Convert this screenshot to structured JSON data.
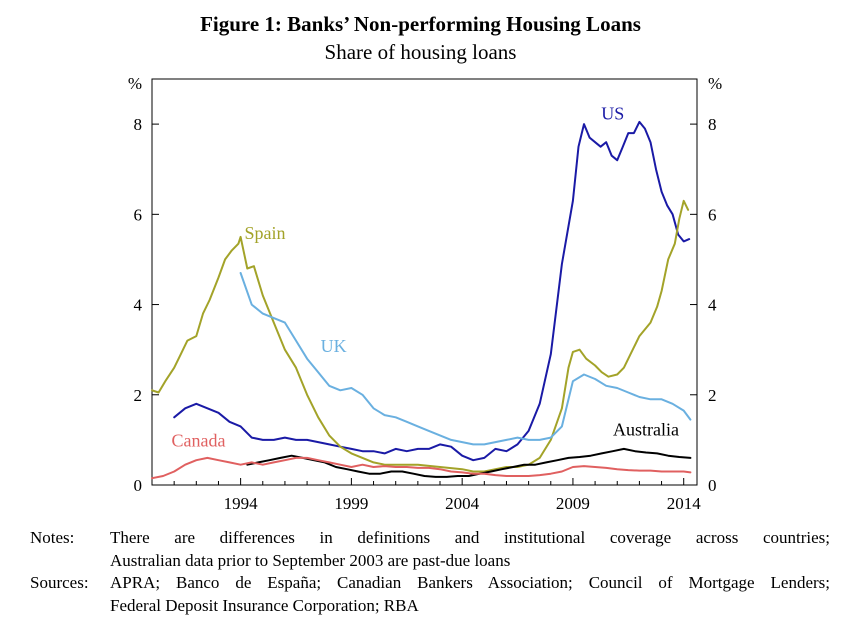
{
  "title": "Figure 1: Banks’ Non-performing Housing Loans",
  "subtitle": "Share of housing loans",
  "notes": {
    "label": "Notes:",
    "line1": "There are differences in definitions and institutional coverage across countries;",
    "line2": "Australian data prior to September 2003 are past-due loans"
  },
  "sources": {
    "label": "Sources:",
    "line1": "APRA; Banco de España; Canadian Bankers Association; Council of Mortgage Lenders;",
    "line2": "Federal Deposit Insurance Corporation; RBA"
  },
  "chart_data": {
    "type": "line",
    "title": "Figure 1: Banks’ Non-performing Housing Loans",
    "subtitle": "Share of housing loans",
    "y_unit_left": "%",
    "y_unit_right": "%",
    "xlim": [
      1990,
      2014.6
    ],
    "ylim": [
      0,
      9
    ],
    "x_ticks": [
      1994,
      1999,
      2004,
      2009,
      2014
    ],
    "y_ticks": [
      0,
      2,
      4,
      6,
      8
    ],
    "grid": false,
    "legend": "inline labels",
    "series": [
      {
        "name": "US",
        "color": "#1a1aa6",
        "x": [
          1991,
          1991.5,
          1992,
          1992.5,
          1993,
          1993.5,
          1994,
          1994.5,
          1995,
          1995.5,
          1996,
          1996.5,
          1997,
          1997.5,
          1998,
          1998.5,
          1999,
          1999.5,
          2000,
          2000.5,
          2001,
          2001.5,
          2002,
          2002.5,
          2003,
          2003.5,
          2004,
          2004.5,
          2005,
          2005.5,
          2006,
          2006.5,
          2007,
          2007.5,
          2008,
          2008.5,
          2009,
          2009.25,
          2009.5,
          2009.75,
          2010,
          2010.25,
          2010.5,
          2010.75,
          2011,
          2011.25,
          2011.5,
          2011.75,
          2012,
          2012.25,
          2012.5,
          2012.75,
          2013,
          2013.25,
          2013.5,
          2013.75,
          2014,
          2014.25
        ],
        "y": [
          1.5,
          1.7,
          1.8,
          1.7,
          1.6,
          1.4,
          1.3,
          1.05,
          1.0,
          1.0,
          1.05,
          1.0,
          1.0,
          0.95,
          0.9,
          0.85,
          0.8,
          0.75,
          0.75,
          0.7,
          0.8,
          0.75,
          0.8,
          0.8,
          0.9,
          0.85,
          0.65,
          0.55,
          0.6,
          0.8,
          0.75,
          0.9,
          1.2,
          1.8,
          2.9,
          4.9,
          6.3,
          7.5,
          8.0,
          7.7,
          7.6,
          7.5,
          7.6,
          7.3,
          7.2,
          7.5,
          7.8,
          7.8,
          8.05,
          7.9,
          7.6,
          7.0,
          6.5,
          6.2,
          6.0,
          5.55,
          5.4,
          5.45
        ]
      },
      {
        "name": "Spain",
        "color": "#a3a329",
        "x": [
          1990,
          1990.3,
          1990.6,
          1991,
          1991.3,
          1991.6,
          1992,
          1992.3,
          1992.6,
          1993,
          1993.3,
          1993.6,
          1993.9,
          1994,
          1994.3,
          1994.6,
          1995,
          1995.5,
          1996,
          1996.5,
          1997,
          1997.5,
          1998,
          1998.5,
          1999,
          1999.5,
          2000,
          2000.5,
          2001,
          2002,
          2003,
          2004,
          2004.5,
          2005,
          2005.5,
          2006,
          2006.5,
          2007,
          2007.5,
          2008,
          2008.5,
          2008.8,
          2009,
          2009.3,
          2009.6,
          2010,
          2010.3,
          2010.6,
          2011,
          2011.3,
          2011.6,
          2012,
          2012.5,
          2012.8,
          2013,
          2013.3,
          2013.6,
          2013.8,
          2014,
          2014.2
        ],
        "y": [
          2.1,
          2.05,
          2.3,
          2.6,
          2.9,
          3.2,
          3.3,
          3.8,
          4.1,
          4.6,
          5.0,
          5.2,
          5.35,
          5.5,
          4.8,
          4.85,
          4.2,
          3.6,
          3.0,
          2.6,
          2.0,
          1.5,
          1.1,
          0.85,
          0.7,
          0.6,
          0.5,
          0.45,
          0.45,
          0.45,
          0.4,
          0.35,
          0.3,
          0.3,
          0.35,
          0.4,
          0.4,
          0.45,
          0.6,
          1.0,
          1.7,
          2.6,
          2.95,
          3.0,
          2.8,
          2.65,
          2.5,
          2.4,
          2.45,
          2.6,
          2.9,
          3.3,
          3.6,
          3.95,
          4.3,
          5.0,
          5.35,
          5.9,
          6.3,
          6.1
        ]
      },
      {
        "name": "UK",
        "color": "#6ab0e0",
        "x": [
          1994,
          1994.5,
          1995,
          1995.5,
          1996,
          1996.5,
          1997,
          1997.5,
          1998,
          1998.5,
          1999,
          1999.5,
          2000,
          2000.5,
          2001,
          2001.5,
          2002,
          2002.5,
          2003,
          2003.5,
          2004,
          2004.5,
          2005,
          2005.5,
          2006,
          2006.5,
          2007,
          2007.5,
          2008,
          2008.5,
          2009,
          2009.5,
          2010,
          2010.5,
          2011,
          2011.5,
          2012,
          2012.5,
          2013,
          2013.5,
          2014,
          2014.3
        ],
        "y": [
          4.7,
          4.0,
          3.8,
          3.7,
          3.6,
          3.2,
          2.8,
          2.5,
          2.2,
          2.1,
          2.15,
          2.0,
          1.7,
          1.55,
          1.5,
          1.4,
          1.3,
          1.2,
          1.1,
          1.0,
          0.95,
          0.9,
          0.9,
          0.95,
          1.0,
          1.05,
          1.0,
          1.0,
          1.05,
          1.3,
          2.3,
          2.45,
          2.35,
          2.2,
          2.15,
          2.05,
          1.95,
          1.9,
          1.9,
          1.8,
          1.65,
          1.45
        ]
      },
      {
        "name": "Australia",
        "color": "#000000",
        "x": [
          1994.3,
          1994.8,
          1995.3,
          1995.8,
          1996.3,
          1996.8,
          1997.3,
          1997.8,
          1998.3,
          1998.8,
          1999.3,
          1999.8,
          2000.3,
          2000.8,
          2001.3,
          2001.8,
          2002.3,
          2002.8,
          2003.3,
          2003.8,
          2004.3,
          2004.8,
          2005.3,
          2005.8,
          2006.3,
          2006.8,
          2007.3,
          2007.8,
          2008.3,
          2008.8,
          2009.3,
          2009.8,
          2010.3,
          2010.8,
          2011.3,
          2011.8,
          2012.3,
          2012.8,
          2013.3,
          2013.8,
          2014.3
        ],
        "y": [
          0.45,
          0.5,
          0.55,
          0.6,
          0.65,
          0.6,
          0.55,
          0.5,
          0.4,
          0.35,
          0.3,
          0.25,
          0.25,
          0.3,
          0.3,
          0.25,
          0.2,
          0.18,
          0.18,
          0.2,
          0.2,
          0.25,
          0.3,
          0.35,
          0.4,
          0.45,
          0.45,
          0.5,
          0.55,
          0.6,
          0.62,
          0.65,
          0.7,
          0.75,
          0.8,
          0.75,
          0.72,
          0.7,
          0.65,
          0.62,
          0.6
        ]
      },
      {
        "name": "Canada",
        "color": "#e06060",
        "x": [
          1990,
          1990.5,
          1991,
          1991.5,
          1992,
          1992.5,
          1993,
          1993.5,
          1994,
          1994.5,
          1995,
          1995.5,
          1996,
          1996.5,
          1997,
          1997.5,
          1998,
          1998.5,
          1999,
          1999.5,
          2000,
          2000.5,
          2001,
          2001.5,
          2002,
          2002.5,
          2003,
          2003.5,
          2004,
          2004.5,
          2005,
          2005.5,
          2006,
          2006.5,
          2007,
          2007.5,
          2008,
          2008.5,
          2009,
          2009.5,
          2010,
          2010.5,
          2011,
          2011.5,
          2012,
          2012.5,
          2013,
          2013.5,
          2014,
          2014.3
        ],
        "y": [
          0.15,
          0.2,
          0.3,
          0.45,
          0.55,
          0.6,
          0.55,
          0.5,
          0.45,
          0.5,
          0.45,
          0.5,
          0.55,
          0.6,
          0.6,
          0.55,
          0.5,
          0.45,
          0.4,
          0.45,
          0.4,
          0.42,
          0.4,
          0.4,
          0.38,
          0.38,
          0.35,
          0.3,
          0.28,
          0.25,
          0.25,
          0.22,
          0.2,
          0.2,
          0.2,
          0.22,
          0.25,
          0.3,
          0.4,
          0.42,
          0.4,
          0.38,
          0.35,
          0.33,
          0.32,
          0.32,
          0.3,
          0.3,
          0.3,
          0.28
        ]
      }
    ],
    "labels": [
      {
        "text": "US",
        "series": "US",
        "x": 2010.8,
        "y": 8.1
      },
      {
        "text": "Spain",
        "series": "Spain",
        "x": 1995.1,
        "y": 5.45
      },
      {
        "text": "UK",
        "series": "UK",
        "x": 1998.2,
        "y": 2.95
      },
      {
        "text": "Australia",
        "series": "Australia",
        "x": 2012.3,
        "y": 1.1
      },
      {
        "text": "Canada",
        "series": "Canada",
        "x": 1992.1,
        "y": 0.85
      }
    ]
  }
}
